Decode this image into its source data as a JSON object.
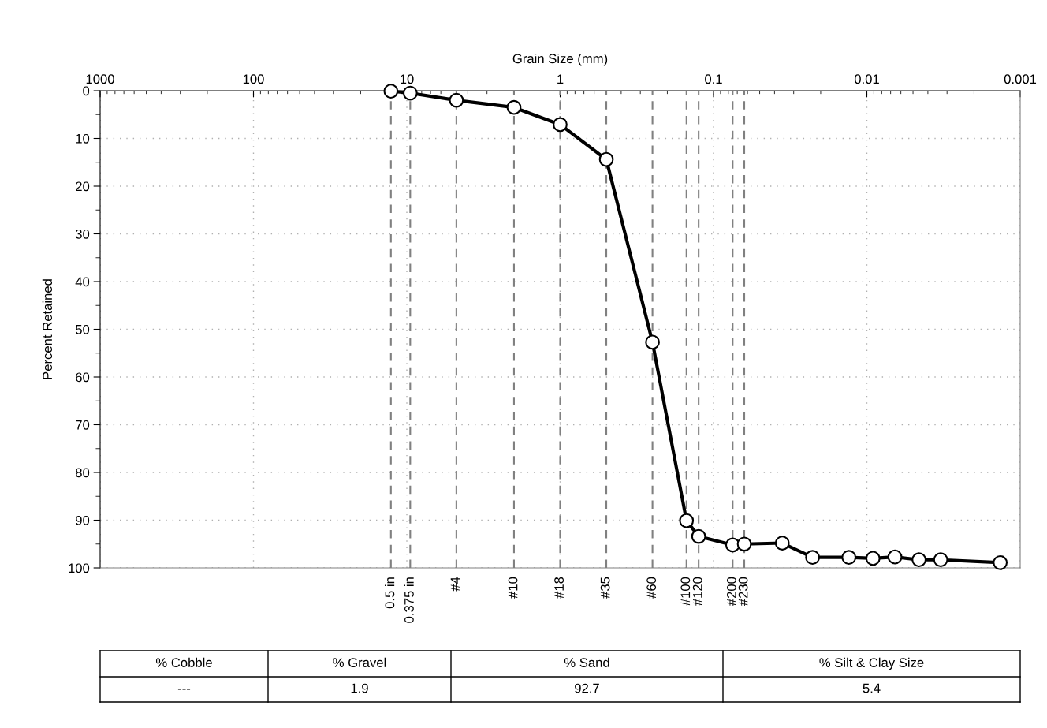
{
  "chart_data": {
    "type": "line",
    "xlabel": "Grain Size (mm)",
    "ylabel": "Percent Retained",
    "x": [
      12.7,
      9.5,
      4.75,
      2.0,
      1.0,
      0.5,
      0.25,
      0.15,
      0.125,
      0.075,
      0.063,
      0.0356,
      0.0226,
      0.0131,
      0.00912,
      0.00656,
      0.00457,
      0.0033,
      0.00135
    ],
    "series": [
      {
        "color": "#000000",
        "values": [
          0.1,
          0.5,
          2.0,
          3.5,
          7.1,
          14.4,
          52.7,
          90.1,
          93.4,
          95.2,
          95.0,
          94.8,
          97.8,
          97.8,
          98.0,
          97.7,
          98.3,
          98.3,
          98.9
        ]
      }
    ],
    "log": "x",
    "xlim": [
      1000,
      0.001
    ],
    "xticks": [
      1000,
      100,
      10,
      1,
      0.1,
      0.01,
      0.001
    ],
    "ylim": [
      100,
      0
    ],
    "yticks": [
      0,
      10,
      20,
      30,
      40,
      50,
      60,
      70,
      80,
      90,
      100
    ],
    "grid": true,
    "marker": "circle",
    "line_style": "solid",
    "ref_lines": [
      {
        "axis": "x",
        "value": 12.7,
        "color": "#808080",
        "line_style": "dashed"
      },
      {
        "axis": "x",
        "value": 9.5,
        "color": "#808080",
        "line_style": "dashed"
      },
      {
        "axis": "x",
        "value": 4.75,
        "color": "#808080",
        "line_style": "dashed"
      },
      {
        "axis": "x",
        "value": 2.0,
        "color": "#808080",
        "line_style": "dashed"
      },
      {
        "axis": "x",
        "value": 1.0,
        "color": "#808080",
        "line_style": "dashed"
      },
      {
        "axis": "x",
        "value": 0.5,
        "color": "#808080",
        "line_style": "dashed"
      },
      {
        "axis": "x",
        "value": 0.25,
        "color": "#808080",
        "line_style": "dashed"
      },
      {
        "axis": "x",
        "value": 0.15,
        "color": "#808080",
        "line_style": "dashed"
      },
      {
        "axis": "x",
        "value": 0.125,
        "color": "#808080",
        "line_style": "dashed"
      },
      {
        "axis": "x",
        "value": 0.075,
        "color": "#808080",
        "line_style": "dashed"
      },
      {
        "axis": "x",
        "value": 0.063,
        "color": "#808080",
        "line_style": "dashed"
      }
    ],
    "annotations": [
      {
        "text": "0.5 in",
        "x": 12.7,
        "y": 100
      },
      {
        "text": "0.375 in",
        "x": 9.5,
        "y": 100
      },
      {
        "text": "#4",
        "x": 4.75,
        "y": 100
      },
      {
        "text": "#10",
        "x": 2.0,
        "y": 100
      },
      {
        "text": "#18",
        "x": 1.0,
        "y": 100
      },
      {
        "text": "#35",
        "x": 0.5,
        "y": 100
      },
      {
        "text": "#60",
        "x": 0.25,
        "y": 100
      },
      {
        "text": "#100",
        "x": 0.15,
        "y": 100
      },
      {
        "text": "#120",
        "x": 0.125,
        "y": 100
      },
      {
        "text": "#200",
        "x": 0.075,
        "y": 100
      },
      {
        "text": "#230",
        "x": 0.063,
        "y": 100
      },
      "% Cobble",
      "% Gravel",
      "% Sand",
      "% Silt & Clay Size",
      "---",
      "1.9",
      "92.7",
      "5.4"
    ]
  }
}
